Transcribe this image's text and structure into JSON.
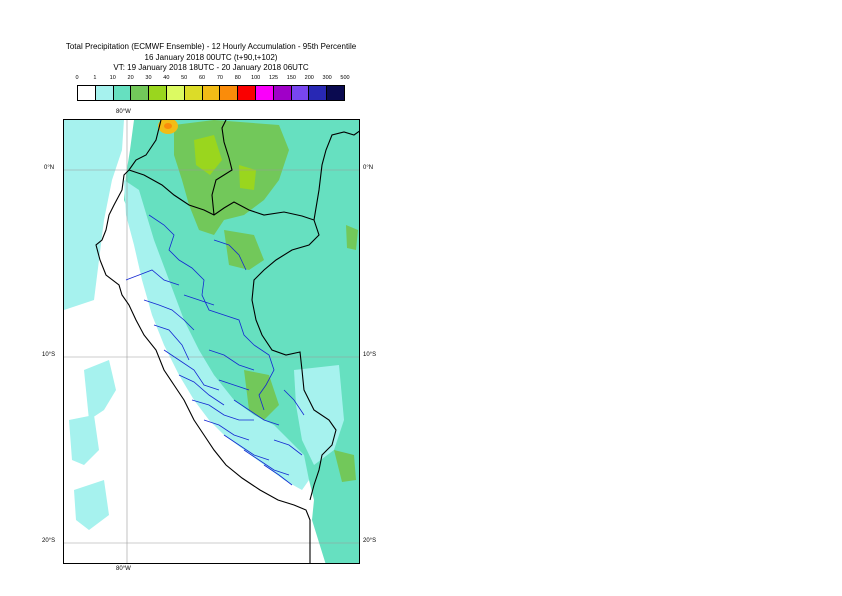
{
  "title": {
    "line1": "Total Precipitation (ECMWF Ensemble) - 12 Hourly Accumulation - 95th Percentile",
    "line2": "16 January 2018 00UTC (t+90,t+102)",
    "line3": "VT: 19 January 2018 18UTC - 20 January 2018 06UTC"
  },
  "legend": {
    "thresholds": [
      "0",
      "1",
      "10",
      "20",
      "30",
      "40",
      "50",
      "60",
      "70",
      "80",
      "100",
      "125",
      "150",
      "200",
      "300",
      "500"
    ],
    "colors": [
      "#ffffff",
      "#a6f2ee",
      "#66e0c0",
      "#72c85a",
      "#9ad61e",
      "#dcfa62",
      "#dcdc28",
      "#f2bc16",
      "#fa8c0a",
      "#fa0000",
      "#fa00fa",
      "#a000c8",
      "#7846f0",
      "#2828b4",
      "#0a0a50"
    ]
  },
  "map": {
    "lon_labels": {
      "top": "80°W",
      "bottom": "80°W"
    },
    "lat_labels": [
      "0°N",
      "10°S",
      "20°S"
    ],
    "colors": {
      "ocean_light": "#a6f2ee",
      "land_medium": "#66e0c0",
      "heavy": "#72c85a",
      "very_heavy": "#9ad61e",
      "peak": "#f2bc16",
      "peak_core": "#fa8c0a",
      "coast": "#000000",
      "boundaries": "#1428d2",
      "grid": "#9a9a9a"
    }
  }
}
